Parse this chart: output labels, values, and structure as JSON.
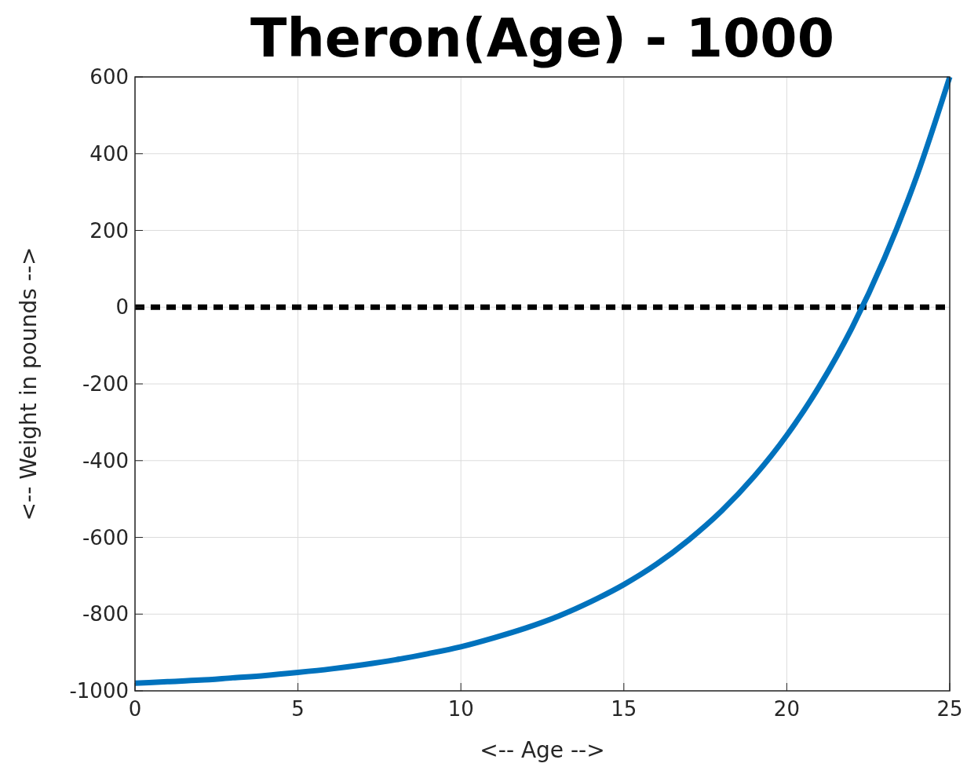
{
  "chart_data": {
    "type": "line",
    "title": "Theron(Age) - 1000",
    "xlabel": "<-- Age -->",
    "ylabel": "<-- Weight in pounds -->",
    "x": [
      0,
      1,
      2,
      3,
      4,
      5,
      6,
      7,
      8,
      9,
      10,
      11,
      12,
      13,
      14,
      15,
      16,
      17,
      18,
      19,
      20,
      21,
      22,
      23,
      24,
      25
    ],
    "series": [
      {
        "color": "#0072bd",
        "values": [
          -980,
          -976,
          -972,
          -966,
          -960,
          -952,
          -943,
          -932,
          -919,
          -903,
          -885,
          -862,
          -836,
          -805,
          -767,
          -723,
          -670,
          -606,
          -531,
          -441,
          -334,
          -206,
          -54,
          128,
          344,
          600
        ]
      }
    ],
    "xlim": [
      0,
      25
    ],
    "xticks": [
      0,
      5,
      10,
      15,
      20,
      25
    ],
    "ylim": [
      -1000,
      600
    ],
    "yticks": [
      -1000,
      -800,
      -600,
      -400,
      -200,
      0,
      200,
      400,
      600
    ],
    "grid": true,
    "marker": "none",
    "line_style": "solid",
    "ref_lines": [
      {
        "axis": "y",
        "value": 0,
        "color": "#000000",
        "line_style": "dashed"
      }
    ]
  }
}
